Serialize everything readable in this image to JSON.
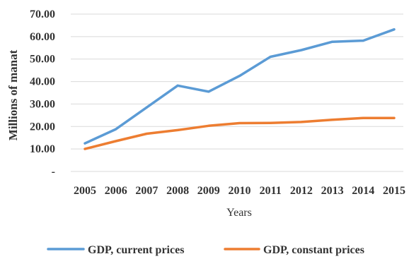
{
  "chart_data": {
    "type": "line",
    "title": "",
    "xlabel": "Years",
    "ylabel": "Millions of manat",
    "categories": [
      "2005",
      "2006",
      "2007",
      "2008",
      "2009",
      "2010",
      "2011",
      "2012",
      "2013",
      "2014",
      "2015"
    ],
    "y_ticks": [
      0,
      10,
      20,
      30,
      40,
      50,
      60,
      70
    ],
    "y_tick_labels": [
      "-",
      "10.00",
      "20.00",
      "30.00",
      "40.00",
      "50.00",
      "60.00",
      "70.00"
    ],
    "ylim": [
      0,
      70
    ],
    "grid": true,
    "legend_position": "bottom",
    "series": [
      {
        "name": "GDP, current prices",
        "color": "#5b9bd5",
        "values": [
          12.5,
          18.8,
          28.5,
          38.2,
          35.5,
          42.5,
          51.0,
          54.0,
          57.7,
          58.2,
          63.2
        ]
      },
      {
        "name": "GDP, constant prices",
        "color": "#ed7d31",
        "values": [
          10.0,
          13.5,
          16.8,
          18.4,
          20.3,
          21.5,
          21.6,
          22.0,
          23.0,
          23.8,
          23.8
        ]
      }
    ]
  }
}
